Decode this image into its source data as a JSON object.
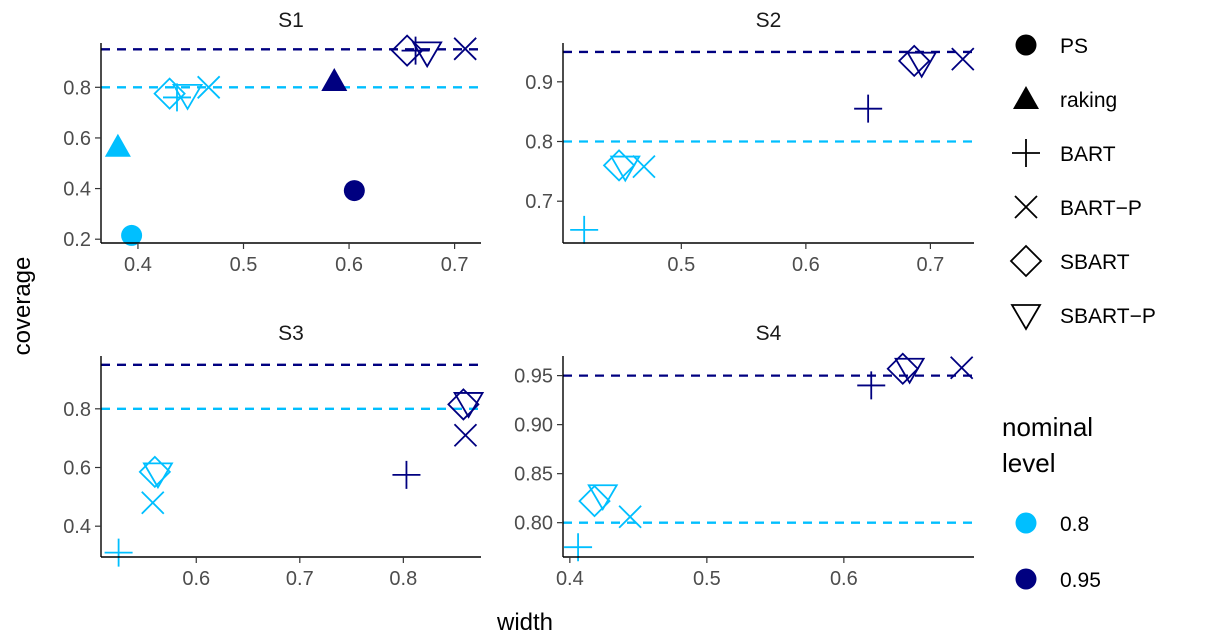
{
  "chart_data": {
    "type": "scatter",
    "xlabel": "width",
    "ylabel": "coverage",
    "colors": {
      "0.8": "#00BFFF",
      "0.95": "#000080"
    },
    "legend_shape": {
      "title": "",
      "items": [
        {
          "label": "PS",
          "shape": "circle"
        },
        {
          "label": "raking",
          "shape": "triangle"
        },
        {
          "label": "BART",
          "shape": "plus"
        },
        {
          "label": "BART−P",
          "shape": "cross"
        },
        {
          "label": "SBART",
          "shape": "diamond"
        },
        {
          "label": "SBART−P",
          "shape": "triangle-down"
        }
      ]
    },
    "legend_color": {
      "title_lines": [
        "nominal",
        "level"
      ],
      "items": [
        {
          "label": "0.8",
          "level": "0.8"
        },
        {
          "label": "0.95",
          "level": "0.95"
        }
      ]
    },
    "panels": [
      {
        "title": "S1",
        "xlim": [
          0.365,
          0.725
        ],
        "ylim": [
          0.185,
          0.975
        ],
        "xticks": [
          {
            "v": 0.4,
            "label": "0.4"
          },
          {
            "v": 0.5,
            "label": "0.5"
          },
          {
            "v": 0.6,
            "label": "0.6"
          },
          {
            "v": 0.7,
            "label": "0.7"
          }
        ],
        "yticks": [
          {
            "v": 0.2,
            "label": "0.2"
          },
          {
            "v": 0.4,
            "label": "0.4"
          },
          {
            "v": 0.6,
            "label": "0.6"
          },
          {
            "v": 0.8,
            "label": "0.8"
          }
        ],
        "hlines": [
          {
            "y": 0.8,
            "level": "0.8"
          },
          {
            "y": 0.95,
            "level": "0.95"
          }
        ],
        "points": [
          {
            "method": "PS",
            "level": "0.8",
            "x": 0.394,
            "y": 0.215
          },
          {
            "method": "raking",
            "level": "0.8",
            "x": 0.381,
            "y": 0.565
          },
          {
            "method": "SBART",
            "level": "0.8",
            "x": 0.43,
            "y": 0.775
          },
          {
            "method": "SBART-P",
            "level": "0.8",
            "x": 0.447,
            "y": 0.77
          },
          {
            "method": "BART",
            "level": "0.8",
            "x": 0.437,
            "y": 0.76
          },
          {
            "method": "BART-P",
            "level": "0.8",
            "x": 0.467,
            "y": 0.8
          },
          {
            "method": "raking",
            "level": "0.95",
            "x": 0.586,
            "y": 0.825
          },
          {
            "method": "PS",
            "level": "0.95",
            "x": 0.605,
            "y": 0.392
          },
          {
            "method": "SBART",
            "level": "0.95",
            "x": 0.655,
            "y": 0.945
          },
          {
            "method": "SBART-P",
            "level": "0.95",
            "x": 0.674,
            "y": 0.938
          },
          {
            "method": "BART",
            "level": "0.95",
            "x": 0.663,
            "y": 0.945
          },
          {
            "method": "BART-P",
            "level": "0.95",
            "x": 0.71,
            "y": 0.952
          }
        ]
      },
      {
        "title": "S2",
        "xlim": [
          0.405,
          0.735
        ],
        "ylim": [
          0.63,
          0.965
        ],
        "xticks": [
          {
            "v": 0.5,
            "label": "0.5"
          },
          {
            "v": 0.6,
            "label": "0.6"
          },
          {
            "v": 0.7,
            "label": "0.7"
          }
        ],
        "yticks": [
          {
            "v": 0.7,
            "label": "0.7"
          },
          {
            "v": 0.8,
            "label": "0.8"
          },
          {
            "v": 0.9,
            "label": "0.9"
          }
        ],
        "hlines": [
          {
            "y": 0.8,
            "level": "0.8"
          },
          {
            "y": 0.95,
            "level": "0.95"
          }
        ],
        "points": [
          {
            "method": "BART",
            "level": "0.8",
            "x": 0.422,
            "y": 0.652
          },
          {
            "method": "SBART",
            "level": "0.8",
            "x": 0.45,
            "y": 0.76
          },
          {
            "method": "SBART-P",
            "level": "0.8",
            "x": 0.455,
            "y": 0.758
          },
          {
            "method": "BART-P",
            "level": "0.8",
            "x": 0.47,
            "y": 0.758
          },
          {
            "method": "BART",
            "level": "0.95",
            "x": 0.65,
            "y": 0.855
          },
          {
            "method": "SBART",
            "level": "0.95",
            "x": 0.687,
            "y": 0.935
          },
          {
            "method": "SBART-P",
            "level": "0.95",
            "x": 0.693,
            "y": 0.932
          },
          {
            "method": "BART-P",
            "level": "0.95",
            "x": 0.726,
            "y": 0.938
          }
        ]
      },
      {
        "title": "S3",
        "xlim": [
          0.508,
          0.875
        ],
        "ylim": [
          0.295,
          0.98
        ],
        "xticks": [
          {
            "v": 0.6,
            "label": "0.6"
          },
          {
            "v": 0.7,
            "label": "0.7"
          },
          {
            "v": 0.8,
            "label": "0.8"
          }
        ],
        "yticks": [
          {
            "v": 0.4,
            "label": "0.4"
          },
          {
            "v": 0.6,
            "label": "0.6"
          },
          {
            "v": 0.8,
            "label": "0.8"
          }
        ],
        "hlines": [
          {
            "y": 0.8,
            "level": "0.8"
          },
          {
            "y": 0.95,
            "level": "0.95"
          }
        ],
        "points": [
          {
            "method": "BART",
            "level": "0.8",
            "x": 0.525,
            "y": 0.31
          },
          {
            "method": "BART-P",
            "level": "0.8",
            "x": 0.558,
            "y": 0.48
          },
          {
            "method": "SBART",
            "level": "0.8",
            "x": 0.56,
            "y": 0.585
          },
          {
            "method": "SBART-P",
            "level": "0.8",
            "x": 0.563,
            "y": 0.58
          },
          {
            "method": "BART",
            "level": "0.95",
            "x": 0.803,
            "y": 0.575
          },
          {
            "method": "BART-P",
            "level": "0.95",
            "x": 0.86,
            "y": 0.71
          },
          {
            "method": "SBART",
            "level": "0.95",
            "x": 0.858,
            "y": 0.815
          },
          {
            "method": "SBART-P",
            "level": "0.95",
            "x": 0.863,
            "y": 0.82
          }
        ]
      },
      {
        "title": "S4",
        "xlim": [
          0.395,
          0.695
        ],
        "ylim": [
          0.765,
          0.97
        ],
        "xticks": [
          {
            "v": 0.4,
            "label": "0.4"
          },
          {
            "v": 0.5,
            "label": "0.5"
          },
          {
            "v": 0.6,
            "label": "0.6"
          }
        ],
        "yticks": [
          {
            "v": 0.8,
            "label": "0.80"
          },
          {
            "v": 0.85,
            "label": "0.85"
          },
          {
            "v": 0.9,
            "label": "0.90"
          },
          {
            "v": 0.95,
            "label": "0.95"
          }
        ],
        "hlines": [
          {
            "y": 0.8,
            "level": "0.8"
          },
          {
            "y": 0.95,
            "level": "0.95"
          }
        ],
        "points": [
          {
            "method": "BART",
            "level": "0.8",
            "x": 0.406,
            "y": 0.775
          },
          {
            "method": "SBART",
            "level": "0.8",
            "x": 0.418,
            "y": 0.822
          },
          {
            "method": "SBART-P",
            "level": "0.8",
            "x": 0.424,
            "y": 0.828
          },
          {
            "method": "BART-P",
            "level": "0.8",
            "x": 0.444,
            "y": 0.806
          },
          {
            "method": "BART",
            "level": "0.95",
            "x": 0.62,
            "y": 0.94
          },
          {
            "method": "SBART",
            "level": "0.95",
            "x": 0.643,
            "y": 0.957
          },
          {
            "method": "SBART-P",
            "level": "0.95",
            "x": 0.648,
            "y": 0.957
          },
          {
            "method": "BART-P",
            "level": "0.95",
            "x": 0.686,
            "y": 0.958
          }
        ]
      }
    ]
  }
}
